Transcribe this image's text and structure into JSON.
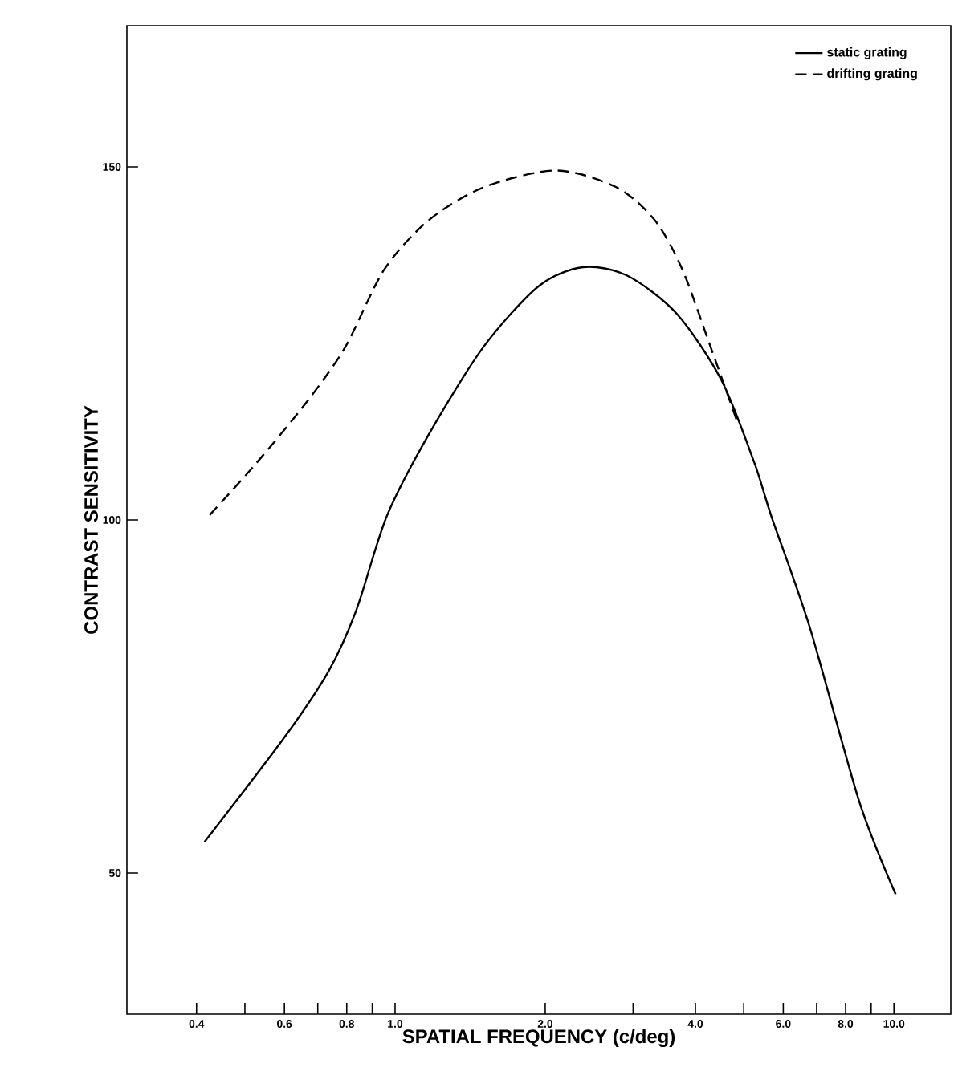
{
  "chart_data": {
    "type": "line",
    "xlabel": "SPATIAL FREQUENCY (c/deg)",
    "ylabel": "CONTRAST SENSITIVITY",
    "log": "x",
    "xlim": [
      0.29,
      13
    ],
    "ylim": [
      30,
      170
    ],
    "xticks": [
      0.4,
      {
        "value": 0.5,
        "label": null
      },
      0.6,
      {
        "value": 0.7,
        "label": null
      },
      0.8,
      {
        "value": 0.9,
        "label": null
      },
      {
        "value": 1,
        "label": "1.0"
      },
      {
        "value": 2,
        "label": "2.0"
      },
      {
        "value": 3,
        "label": null
      },
      {
        "value": 4,
        "label": "4.0"
      },
      {
        "value": 5,
        "label": null
      },
      {
        "value": 6,
        "label": "6.0"
      },
      {
        "value": 7,
        "label": null
      },
      {
        "value": 8,
        "label": "8.0"
      },
      {
        "value": 9,
        "label": null
      },
      {
        "value": 10,
        "label": "10.0"
      }
    ],
    "yticks": [
      50,
      100,
      150
    ],
    "grid": false,
    "legend": "top right",
    "marker": "none",
    "series": [
      {
        "name": "static grating",
        "color": "#000000",
        "line_style": "solid",
        "x": [
          0.415,
          0.6,
          0.736,
          0.836,
          0.962,
          1.166,
          1.504,
          1.94,
          2.38,
          2.92,
          3.67,
          4.51,
          5.25,
          5.68,
          6.78,
          8.54,
          10.08
        ],
        "values": [
          54.4,
          69.2,
          78.6,
          87.2,
          100.5,
          112,
          124.5,
          133.1,
          135.8,
          134.6,
          129.2,
          119.8,
          108.1,
          100.5,
          84.8,
          59.9,
          47.0
        ]
      },
      {
        "name": "drifting grating",
        "color": "#000000",
        "line_style": "dashed",
        "x": [
          0.425,
          0.528,
          0.665,
          0.795,
          0.95,
          1.166,
          1.504,
          2.1,
          2.78,
          3.32,
          3.77,
          4.29,
          4.87
        ],
        "values": [
          100.7,
          108.1,
          116.7,
          124.5,
          135.4,
          142.4,
          147.1,
          149.5,
          147.1,
          142.4,
          135.4,
          124.5,
          113.6
        ]
      }
    ]
  }
}
